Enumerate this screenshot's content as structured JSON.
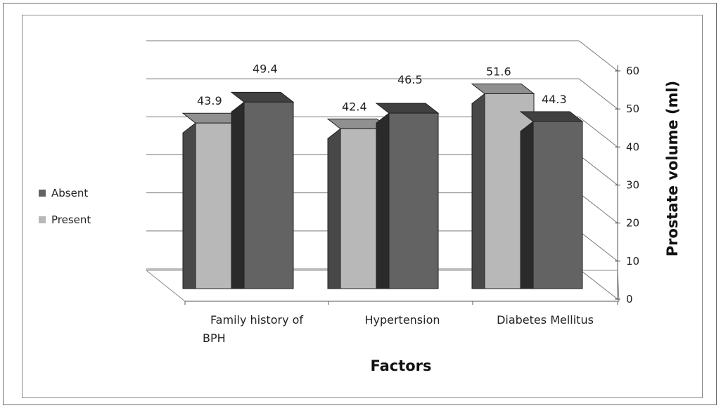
{
  "chart_data": {
    "type": "bar",
    "categories": [
      "Family history of BPH",
      "Hypertension",
      "Diabetes Mellitus"
    ],
    "category_lines": [
      [
        "Family history of",
        "BPH"
      ],
      [
        "Hypertension"
      ],
      [
        "Diabetes Mellitus"
      ]
    ],
    "series": [
      {
        "name": "Present",
        "values": [
          43.9,
          42.4,
          51.6
        ],
        "color": "#b8b8b8"
      },
      {
        "name": "Absent",
        "values": [
          49.4,
          46.5,
          44.3
        ],
        "color": "#636363"
      }
    ],
    "legend_order": [
      "Absent",
      "Present"
    ],
    "data_labels": [
      "43.9",
      "49.4",
      "42.4",
      "46.5",
      "51.6",
      "44.3"
    ],
    "y_ticks": [
      "0",
      "10",
      "20",
      "30",
      "40",
      "50",
      "60"
    ],
    "xlabel": "Factors",
    "ylabel": "Prostate volume (ml)",
    "ylim": [
      0,
      60
    ],
    "grid": true,
    "legend_position": "left",
    "three_d": true
  }
}
